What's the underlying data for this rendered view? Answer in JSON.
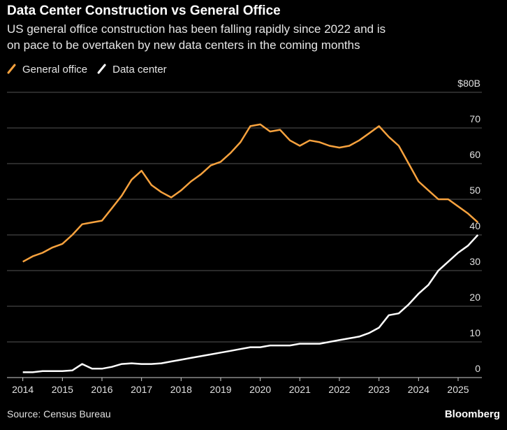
{
  "chart_data": {
    "type": "line",
    "title": "Data Center Construction vs General Office",
    "subtitle": [
      "US general office construction has been falling rapidly since 2022 and is",
      "on pace to be overtaken by new data centers in the coming months"
    ],
    "source": "Source: Census Bureau",
    "brand": "Bloomberg",
    "x": [
      2014,
      2014.25,
      2014.5,
      2014.75,
      2015,
      2015.25,
      2015.5,
      2015.75,
      2016,
      2016.25,
      2016.5,
      2016.75,
      2017,
      2017.25,
      2017.5,
      2017.75,
      2018,
      2018.25,
      2018.5,
      2018.75,
      2019,
      2019.25,
      2019.5,
      2019.75,
      2020,
      2020.25,
      2020.5,
      2020.75,
      2021,
      2021.25,
      2021.5,
      2021.75,
      2022,
      2022.25,
      2022.5,
      2022.75,
      2023,
      2023.25,
      2023.5,
      2023.75,
      2024,
      2024.25,
      2024.5,
      2024.75,
      2025,
      2025.25,
      2025.5
    ],
    "series": [
      {
        "name": "General office",
        "color": "#f7a23e",
        "values": [
          32.5,
          34,
          35,
          36.5,
          37.5,
          40,
          43,
          43.5,
          44,
          47.5,
          51,
          55.5,
          58,
          54,
          52,
          50.5,
          52.5,
          55,
          57,
          59.5,
          60.5,
          63,
          66,
          70.5,
          71,
          69,
          69.5,
          66.5,
          65,
          66.5,
          66,
          65,
          64.5,
          65,
          66.5,
          68.5,
          70.5,
          67.5,
          65,
          60,
          55,
          52.5,
          50,
          50,
          48,
          46,
          43.5
        ]
      },
      {
        "name": "Data center",
        "color": "#ffffff",
        "values": [
          1.5,
          1.5,
          1.8,
          1.8,
          1.8,
          2,
          3.8,
          2.5,
          2.5,
          3,
          3.8,
          4,
          3.8,
          3.8,
          4,
          4.5,
          5,
          5.5,
          6,
          6.5,
          7,
          7.5,
          8,
          8.5,
          8.5,
          9,
          9,
          9,
          9.5,
          9.5,
          9.5,
          10,
          10.5,
          11,
          11.5,
          12.5,
          14,
          17.5,
          18,
          20.5,
          23.5,
          26,
          30,
          32.5,
          35,
          37,
          40
        ]
      }
    ],
    "xlim": [
      2013.6,
      2025.6
    ],
    "xticks": [
      2014,
      2015,
      2016,
      2017,
      2018,
      2019,
      2020,
      2021,
      2022,
      2023,
      2024,
      2025
    ],
    "ylim": [
      0,
      80
    ],
    "yticks": [
      0,
      10,
      20,
      30,
      40,
      50,
      60,
      70,
      {
        "value": 80,
        "label": "$80B"
      }
    ],
    "grid": true
  }
}
